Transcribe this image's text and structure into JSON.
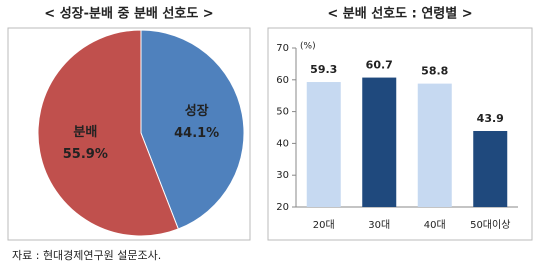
{
  "chart_data": [
    {
      "type": "pie",
      "title": "< 성장-분배 중 분배 선호도 >",
      "categories": [
        "성장",
        "분배"
      ],
      "values": [
        44.1,
        55.9
      ],
      "value_labels": [
        "44.1%",
        "55.9%"
      ],
      "colors": [
        "#4f81bd",
        "#c0504d"
      ]
    },
    {
      "type": "bar",
      "title": "< 분배 선호도 : 연령별 >",
      "y_unit": "(%)",
      "categories": [
        "20대",
        "30대",
        "40대",
        "50대이상"
      ],
      "values": [
        59.3,
        60.7,
        58.8,
        43.9
      ],
      "colors": [
        "#c6d9f1",
        "#1f497d",
        "#c6d9f1",
        "#1f497d"
      ],
      "ylim": [
        20,
        70
      ],
      "yticks": [
        20,
        30,
        40,
        50,
        60,
        70
      ]
    }
  ],
  "source": "자료 : 현대경제연구원 설문조사."
}
